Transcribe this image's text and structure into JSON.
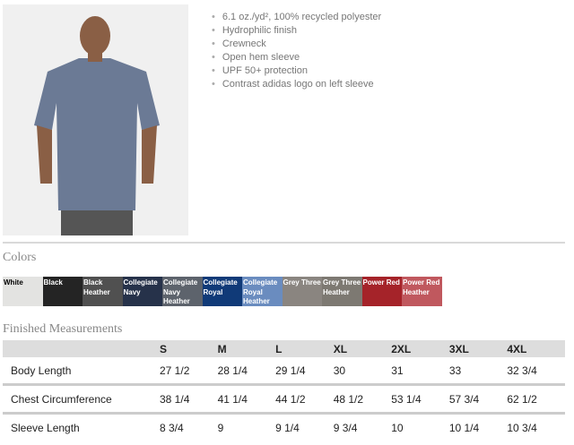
{
  "features": [
    "6.1 oz./yd², 100% recycled polyester",
    "Hydrophilic finish",
    "Crewneck",
    "Open hem sleeve",
    "UPF 50+ protection",
    "Contrast adidas logo on left sleeve"
  ],
  "colors_title": "Colors",
  "colors": [
    {
      "name": "White",
      "hex": "#e3e3e1",
      "text": "#000"
    },
    {
      "name": "Black",
      "hex": "#242424",
      "text": "#fff"
    },
    {
      "name": "Black Heather",
      "hex": "#505050",
      "text": "#fff"
    },
    {
      "name": "Collegiate Navy",
      "hex": "#26324a",
      "text": "#fff"
    },
    {
      "name": "Collegiate Navy Heather",
      "hex": "#5d636c",
      "text": "#fff"
    },
    {
      "name": "Collegiate Royal",
      "hex": "#103a78",
      "text": "#fff"
    },
    {
      "name": "Collegiate Royal Heather",
      "hex": "#6a8cbf",
      "text": "#fff"
    },
    {
      "name": "Grey Three",
      "hex": "#8a8580",
      "text": "#fff"
    },
    {
      "name": "Grey Three Heather",
      "hex": "#7d7972",
      "text": "#fff"
    },
    {
      "name": "Power Red",
      "hex": "#a52329",
      "text": "#fff"
    },
    {
      "name": "Power Red Heather",
      "hex": "#c0585e",
      "text": "#fff"
    }
  ],
  "measurements_title": "Finished Measurements",
  "sizes": [
    "S",
    "M",
    "L",
    "XL",
    "2XL",
    "3XL",
    "4XL"
  ],
  "rows": [
    {
      "label": "Body Length",
      "values": [
        "27 1/2",
        "28 1/4",
        "29 1/4",
        "30",
        "31",
        "33",
        "32 3/4"
      ]
    },
    {
      "label": "Chest Circumference",
      "values": [
        "38 1/4",
        "41 1/4",
        "44 1/2",
        "48 1/2",
        "53 1/4",
        "57 3/4",
        "62 1/2"
      ]
    },
    {
      "label": "Sleeve Length",
      "values": [
        "8 3/4",
        "9",
        "9 1/4",
        "9 3/4",
        "10",
        "10 1/4",
        "10 3/4"
      ]
    }
  ]
}
